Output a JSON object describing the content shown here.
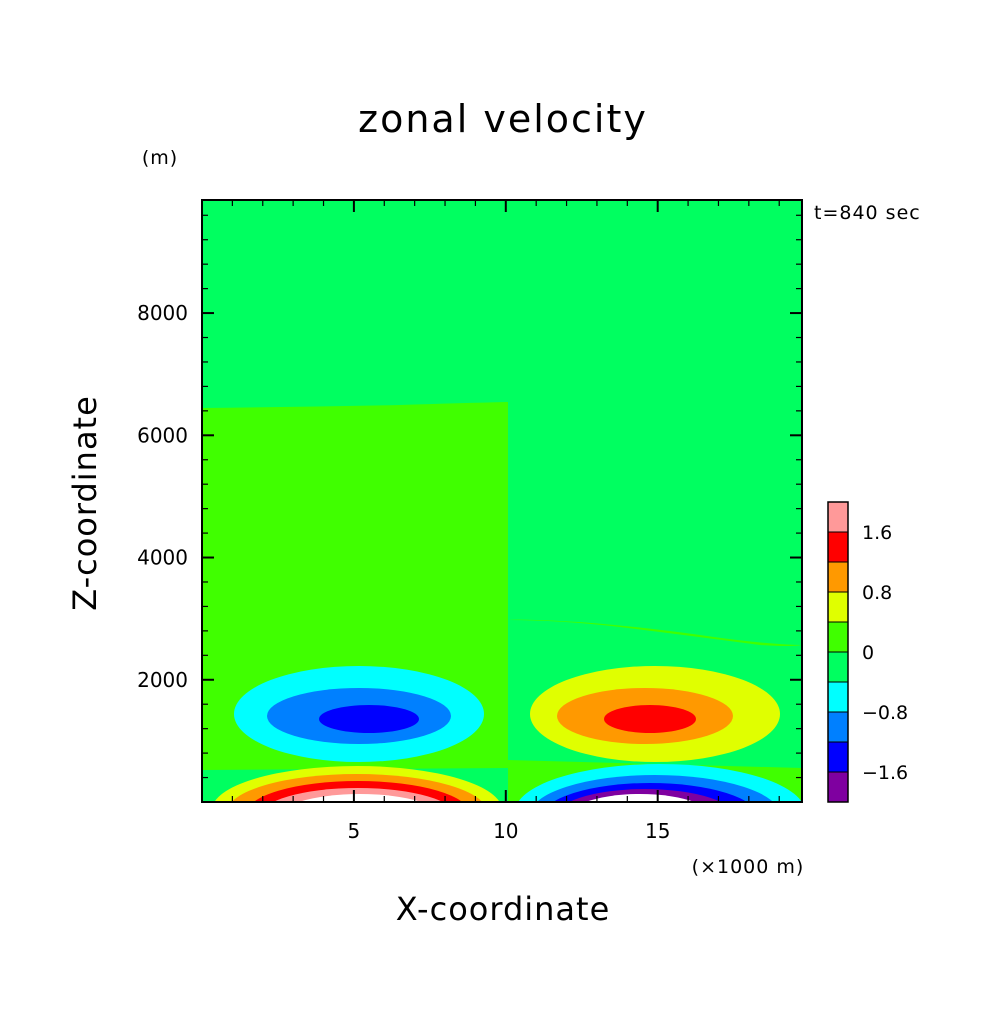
{
  "chart_data": {
    "type": "heatmap",
    "title": "zonal velocity",
    "xlabel": "X-coordinate",
    "ylabel": "Z-coordinate",
    "x_unit": "(×1000 m)",
    "y_unit": "(m)",
    "time_label": "t=840 sec",
    "xlim": [
      0,
      19.75
    ],
    "ylim": [
      0,
      9850
    ],
    "x_ticks": [
      "5",
      "10",
      "15"
    ],
    "x_tick_values": [
      5,
      10,
      15
    ],
    "y_ticks": [
      "2000",
      "4000",
      "6000",
      "8000"
    ],
    "y_tick_values": [
      2000,
      4000,
      6000,
      8000
    ],
    "grid": false,
    "contour_levels": [
      -1.6,
      -1.2,
      -0.8,
      -0.4,
      0,
      0.4,
      0.8,
      1.2,
      1.6
    ],
    "colorbar": {
      "colors": [
        "#7f00a0",
        "#0000ff",
        "#0080ff",
        "#00ffff",
        "#00ff60",
        "#40ff00",
        "#e0ff00",
        "#ff9900",
        "#ff0000",
        "#ff9999"
      ],
      "tick_labels": [
        "-1.6",
        "-0.8",
        "0",
        "0.8",
        "1.6"
      ],
      "tick_values": [
        -1.6,
        -0.8,
        0,
        0.8,
        1.6
      ],
      "placement": "right"
    },
    "features": [
      {
        "name": "negative core aloft",
        "center": [
          5.9,
          1400
        ],
        "min_value": -1.6
      },
      {
        "name": "positive core aloft",
        "center": [
          14.7,
          1400
        ],
        "max_value": 1.6
      },
      {
        "name": "positive surface jet",
        "center": [
          6,
          0
        ],
        "max_value": 2.0
      },
      {
        "name": "negative surface jet",
        "center": [
          14.5,
          0
        ],
        "min_value": -2.0
      }
    ]
  }
}
